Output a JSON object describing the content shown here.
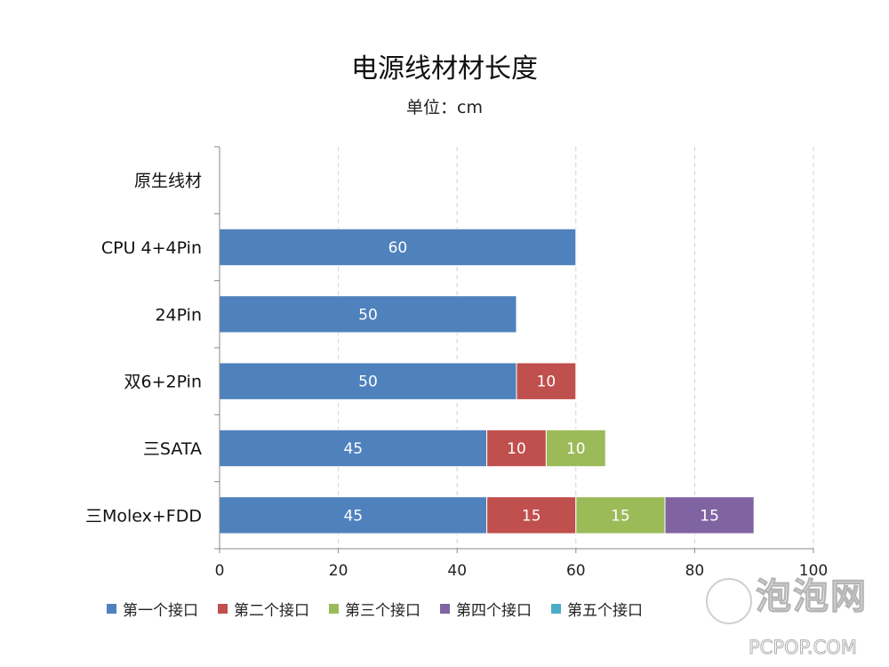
{
  "chart_data": {
    "type": "bar",
    "orientation": "horizontal",
    "stacked": true,
    "title": "电源线材材长度",
    "subtitle": "单位：cm",
    "categories": [
      "原生线材",
      "CPU 4+4Pin",
      "24Pin",
      "双6+2Pin",
      "三SATA",
      "三Molex+FDD"
    ],
    "series": [
      {
        "name": "第一个接口",
        "color": "#4f81bd",
        "values": [
          null,
          60,
          50,
          50,
          45,
          45
        ]
      },
      {
        "name": "第二个接口",
        "color": "#c0504d",
        "values": [
          null,
          null,
          null,
          10,
          10,
          15
        ]
      },
      {
        "name": "第三个接口",
        "color": "#9bbb59",
        "values": [
          null,
          null,
          null,
          null,
          10,
          15
        ]
      },
      {
        "name": "第四个接口",
        "color": "#8064a2",
        "values": [
          null,
          null,
          null,
          null,
          null,
          15
        ]
      },
      {
        "name": "第五个接口",
        "color": "#4bacc6",
        "values": [
          null,
          null,
          null,
          null,
          null,
          null
        ]
      }
    ],
    "xlim": [
      0,
      100
    ],
    "x_ticks": [
      0,
      20,
      40,
      60,
      80,
      100
    ],
    "grid": "vertical-dashed",
    "legend_position": "bottom"
  },
  "watermark": {
    "logo": "泡泡网",
    "domain": "PCPOP.COM"
  }
}
